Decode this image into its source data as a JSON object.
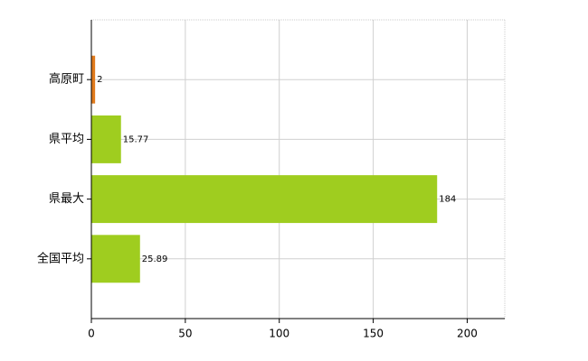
{
  "chart_data": {
    "type": "bar",
    "orientation": "horizontal",
    "categories": [
      "高原町",
      "県平均",
      "県最大",
      "全国平均"
    ],
    "values": [
      2,
      15.77,
      184,
      25.89
    ],
    "colors": [
      "#e07a1c",
      "#9fcd1f",
      "#9fcd1f",
      "#9fcd1f"
    ],
    "xlim": [
      0,
      220
    ],
    "xticks": [
      0,
      50,
      100,
      150,
      200
    ],
    "grid": true
  }
}
